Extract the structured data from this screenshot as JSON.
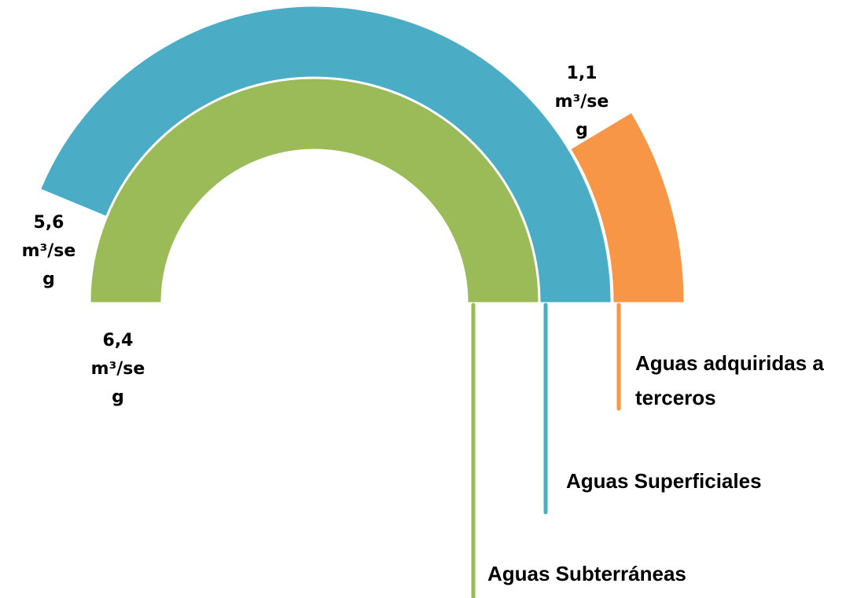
{
  "chart_data": {
    "type": "radial_bar",
    "categories": [
      "Aguas Subterráneas",
      "Aguas Superficiales",
      "Aguas adquiridas a terceros"
    ],
    "values": [
      6.4,
      5.6,
      1.1
    ],
    "value_labels": [
      "6,4 m³/seg",
      "5,6 m³/seg",
      "1,1 m³/seg"
    ],
    "colors": [
      "#9bbb59",
      "#4bacc6",
      "#f79646"
    ],
    "ylim": [
      0,
      6.4
    ]
  }
}
